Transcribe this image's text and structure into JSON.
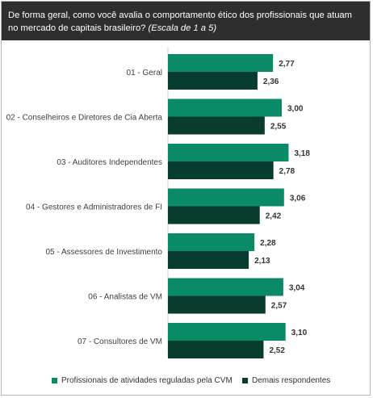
{
  "header": {
    "question": "De forma geral, como você avalia o comportamento ético dos profissionais que atuam no mercado de capitais brasileiro?",
    "scale_note": "(Escala de 1 a 5)"
  },
  "colors": {
    "series1": "#0b8a67",
    "series2": "#083c2f",
    "header_bg": "#2e2e2e"
  },
  "chart_data": {
    "type": "bar",
    "orientation": "horizontal",
    "categories": [
      "01 - Geral",
      "02 - Conselheiros e Diretores de Cia Aberta",
      "03 - Auditores Independentes",
      "04 - Gestores e Administradores de FI",
      "05 - Assessores de Investimento",
      "06 - Analistas de VM",
      "07 - Consultores de VM"
    ],
    "series": [
      {
        "name": "Profissionais de atividades reguladas pela CVM",
        "values": [
          2.77,
          3.0,
          3.18,
          3.06,
          2.28,
          3.04,
          3.1
        ],
        "labels": [
          "2,77",
          "3,00",
          "3,18",
          "3,06",
          "2,28",
          "3,04",
          "3,10"
        ]
      },
      {
        "name": "Demais respondentes",
        "values": [
          2.36,
          2.55,
          2.78,
          2.42,
          2.13,
          2.57,
          2.52
        ],
        "labels": [
          "2,36",
          "2,55",
          "2,78",
          "2,42",
          "2,13",
          "2,57",
          "2,52"
        ]
      }
    ],
    "legend_position": "bottom",
    "grid": false
  }
}
